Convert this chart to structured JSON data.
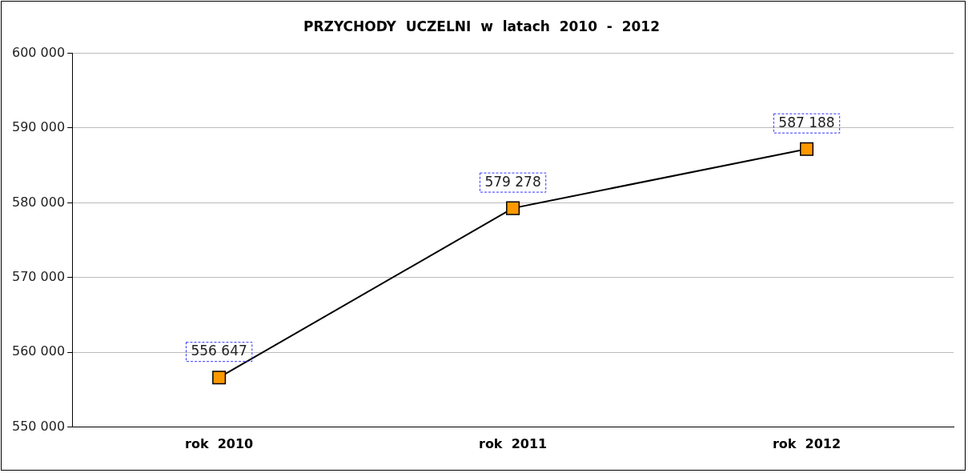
{
  "chart_data": {
    "type": "line",
    "title": "PRZYCHODY  UCZELNI  w  latach  2010  -  2012",
    "categories": [
      "rok  2010",
      "rok  2011",
      "rok  2012"
    ],
    "series": [
      {
        "color": "#000000",
        "colors": [
          "#ff9900",
          "#ff9900",
          "#ff9900"
        ],
        "values": [
          556647,
          579278,
          587188
        ],
        "value_labels": [
          "556 647",
          "579 278",
          "587 188"
        ]
      }
    ],
    "ylim": [
      550000,
      600000
    ],
    "yticks": [
      {
        "value": 550000,
        "label": "550 000"
      },
      {
        "value": 560000,
        "label": "560 000"
      },
      {
        "value": 570000,
        "label": "570 000"
      },
      {
        "value": 580000,
        "label": "580 000"
      },
      {
        "value": 590000,
        "label": "590 000"
      },
      {
        "value": 600000,
        "label": "600 000"
      }
    ],
    "grid": "y",
    "legend": false,
    "marker": "square",
    "line_style": "solid"
  }
}
